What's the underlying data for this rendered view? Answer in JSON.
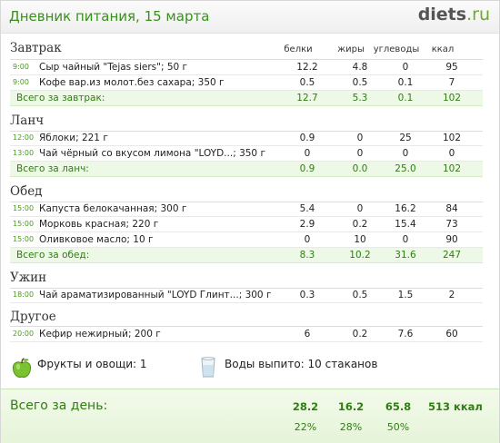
{
  "header": {
    "title": "Дневник питания, 15 марта",
    "logo_main": "diets",
    "logo_tld": ".ru"
  },
  "columns": {
    "protein": "белки",
    "fat": "жиры",
    "carbs": "углеводы",
    "kcal": "ккал"
  },
  "meals": [
    {
      "name": "Завтрак",
      "items": [
        {
          "time": "9:00",
          "food": "Сыр чайный \"Tejas siers\"; 50 г",
          "protein": "12.2",
          "fat": "4.8",
          "carbs": "0",
          "kcal": "95"
        },
        {
          "time": "9:00",
          "food": "Кофе вар.из молот.без сахара; 350 г",
          "protein": "0.5",
          "fat": "0.5",
          "carbs": "0.1",
          "kcal": "7"
        }
      ],
      "total": {
        "label": "Всего за завтрак:",
        "protein": "12.7",
        "fat": "5.3",
        "carbs": "0.1",
        "kcal": "102"
      }
    },
    {
      "name": "Ланч",
      "items": [
        {
          "time": "12:00",
          "food": "Яблоки; 221 г",
          "protein": "0.9",
          "fat": "0",
          "carbs": "25",
          "kcal": "102"
        },
        {
          "time": "13:00",
          "food": "Чай чёрный со вкусом лимона \"LOYD...; 350 г",
          "protein": "0",
          "fat": "0",
          "carbs": "0",
          "kcal": "0"
        }
      ],
      "total": {
        "label": "Всего за ланч:",
        "protein": "0.9",
        "fat": "0.0",
        "carbs": "25.0",
        "kcal": "102"
      }
    },
    {
      "name": "Обед",
      "items": [
        {
          "time": "15:00",
          "food": "Капуста белокачанная; 300 г",
          "protein": "5.4",
          "fat": "0",
          "carbs": "16.2",
          "kcal": "84"
        },
        {
          "time": "15:00",
          "food": "Морковь красная; 220 г",
          "protein": "2.9",
          "fat": "0.2",
          "carbs": "15.4",
          "kcal": "73"
        },
        {
          "time": "15:00",
          "food": "Оливковое масло; 10 г",
          "protein": "0",
          "fat": "10",
          "carbs": "0",
          "kcal": "90"
        }
      ],
      "total": {
        "label": "Всего за обед:",
        "protein": "8.3",
        "fat": "10.2",
        "carbs": "31.6",
        "kcal": "247"
      }
    },
    {
      "name": "Ужин",
      "items": [
        {
          "time": "18:00",
          "food": "Чай араматизированный \"LOYD Глинт...; 300 г",
          "protein": "0.3",
          "fat": "0.5",
          "carbs": "1.5",
          "kcal": "2"
        }
      ],
      "total": null
    },
    {
      "name": "Другое",
      "items": [
        {
          "time": "20:00",
          "food": "Кефир нежирный; 200 г",
          "protein": "6",
          "fat": "0.2",
          "carbs": "7.6",
          "kcal": "60"
        }
      ],
      "total": null
    }
  ],
  "extras": {
    "fruit_label": "Фрукты и овощи: 1",
    "fruit_icon": "green-apple-icon",
    "water_label": "Воды выпито: 10 стаканов",
    "water_icon": "water-glass-icon"
  },
  "day_total": {
    "label": "Всего за день:",
    "protein": "28.2",
    "fat": "16.2",
    "carbs": "65.8",
    "kcal": "513 ккал",
    "protein_pct": "22%",
    "fat_pct": "28%",
    "carbs_pct": "50%"
  },
  "colors": {
    "accent": "#3a8f1e",
    "total_bg": "#eef8e6",
    "logo_green": "#6aaa2e"
  }
}
